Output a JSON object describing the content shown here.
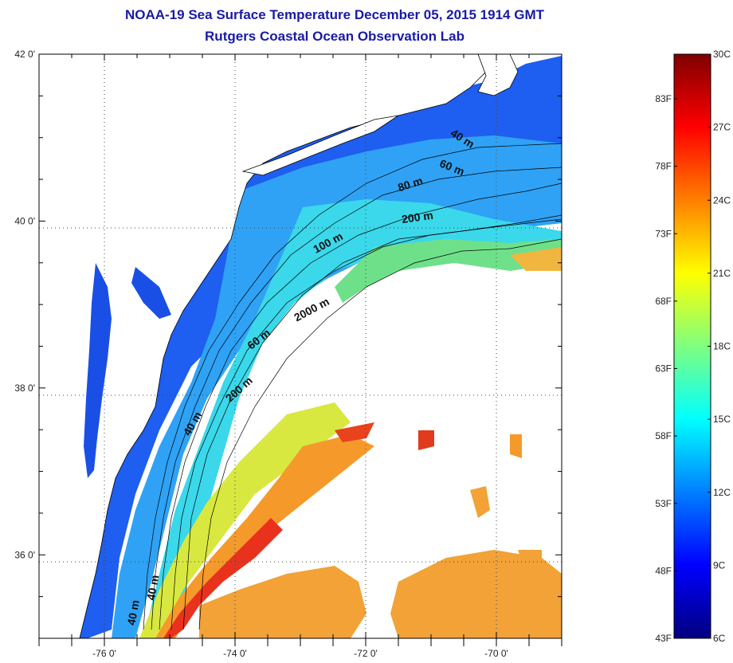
{
  "header": {
    "title": "NOAA-19 Sea Surface Temperature December 05, 2015 1914 GMT",
    "subtitle": "Rutgers Coastal Ocean Observation Lab"
  },
  "map": {
    "projection": "lat-lon",
    "lon_range": [
      -77,
      -69
    ],
    "lat_range": [
      35,
      42
    ],
    "x_ticks": [
      {
        "value": -76,
        "label": "-76 0'"
      },
      {
        "value": -74,
        "label": "-74 0'"
      },
      {
        "value": -72,
        "label": "-72 0'"
      },
      {
        "value": -70,
        "label": "-70 0'"
      }
    ],
    "y_ticks": [
      {
        "value": 42,
        "label": "42 0'"
      },
      {
        "value": 40,
        "label": "40 0'"
      },
      {
        "value": 38,
        "label": "38 0'"
      },
      {
        "value": 36,
        "label": "36 0'"
      }
    ],
    "grid": "dotted",
    "contour_labels": [
      {
        "text": "40 m",
        "lon": -70.55,
        "lat": 40.95,
        "rotate": 32
      },
      {
        "text": "60 m",
        "lon": -70.7,
        "lat": 40.6,
        "rotate": 22
      },
      {
        "text": "80 m",
        "lon": -71.3,
        "lat": 40.4,
        "rotate": -18
      },
      {
        "text": "200 m",
        "lon": -71.2,
        "lat": 40.0,
        "rotate": -8
      },
      {
        "text": "100 m",
        "lon": -72.55,
        "lat": 39.7,
        "rotate": -28
      },
      {
        "text": "2000 m",
        "lon": -72.8,
        "lat": 38.9,
        "rotate": -28
      },
      {
        "text": "60 m",
        "lon": -73.6,
        "lat": 38.55,
        "rotate": -38
      },
      {
        "text": "200 m",
        "lon": -73.9,
        "lat": 37.95,
        "rotate": -42
      },
      {
        "text": "40 m",
        "lon": -74.6,
        "lat": 37.55,
        "rotate": -60
      },
      {
        "text": "40 m",
        "lon": -75.2,
        "lat": 35.6,
        "rotate": -80
      },
      {
        "text": "40 m",
        "lon": -75.5,
        "lat": 35.3,
        "rotate": -80
      }
    ]
  },
  "colorbar": {
    "colors": [
      "#00007f",
      "#0000ff",
      "#007fff",
      "#00ffff",
      "#7fff7f",
      "#ffff00",
      "#ff7f00",
      "#ff0000",
      "#7f0000"
    ],
    "celsius": [
      "30C",
      "27C",
      "24C",
      "21C",
      "18C",
      "15C",
      "12C",
      "9C",
      "6C"
    ],
    "fahrenheit": [
      "83F",
      "78F",
      "73F",
      "68F",
      "63F",
      "58F",
      "53F",
      "48F",
      "43F"
    ]
  }
}
